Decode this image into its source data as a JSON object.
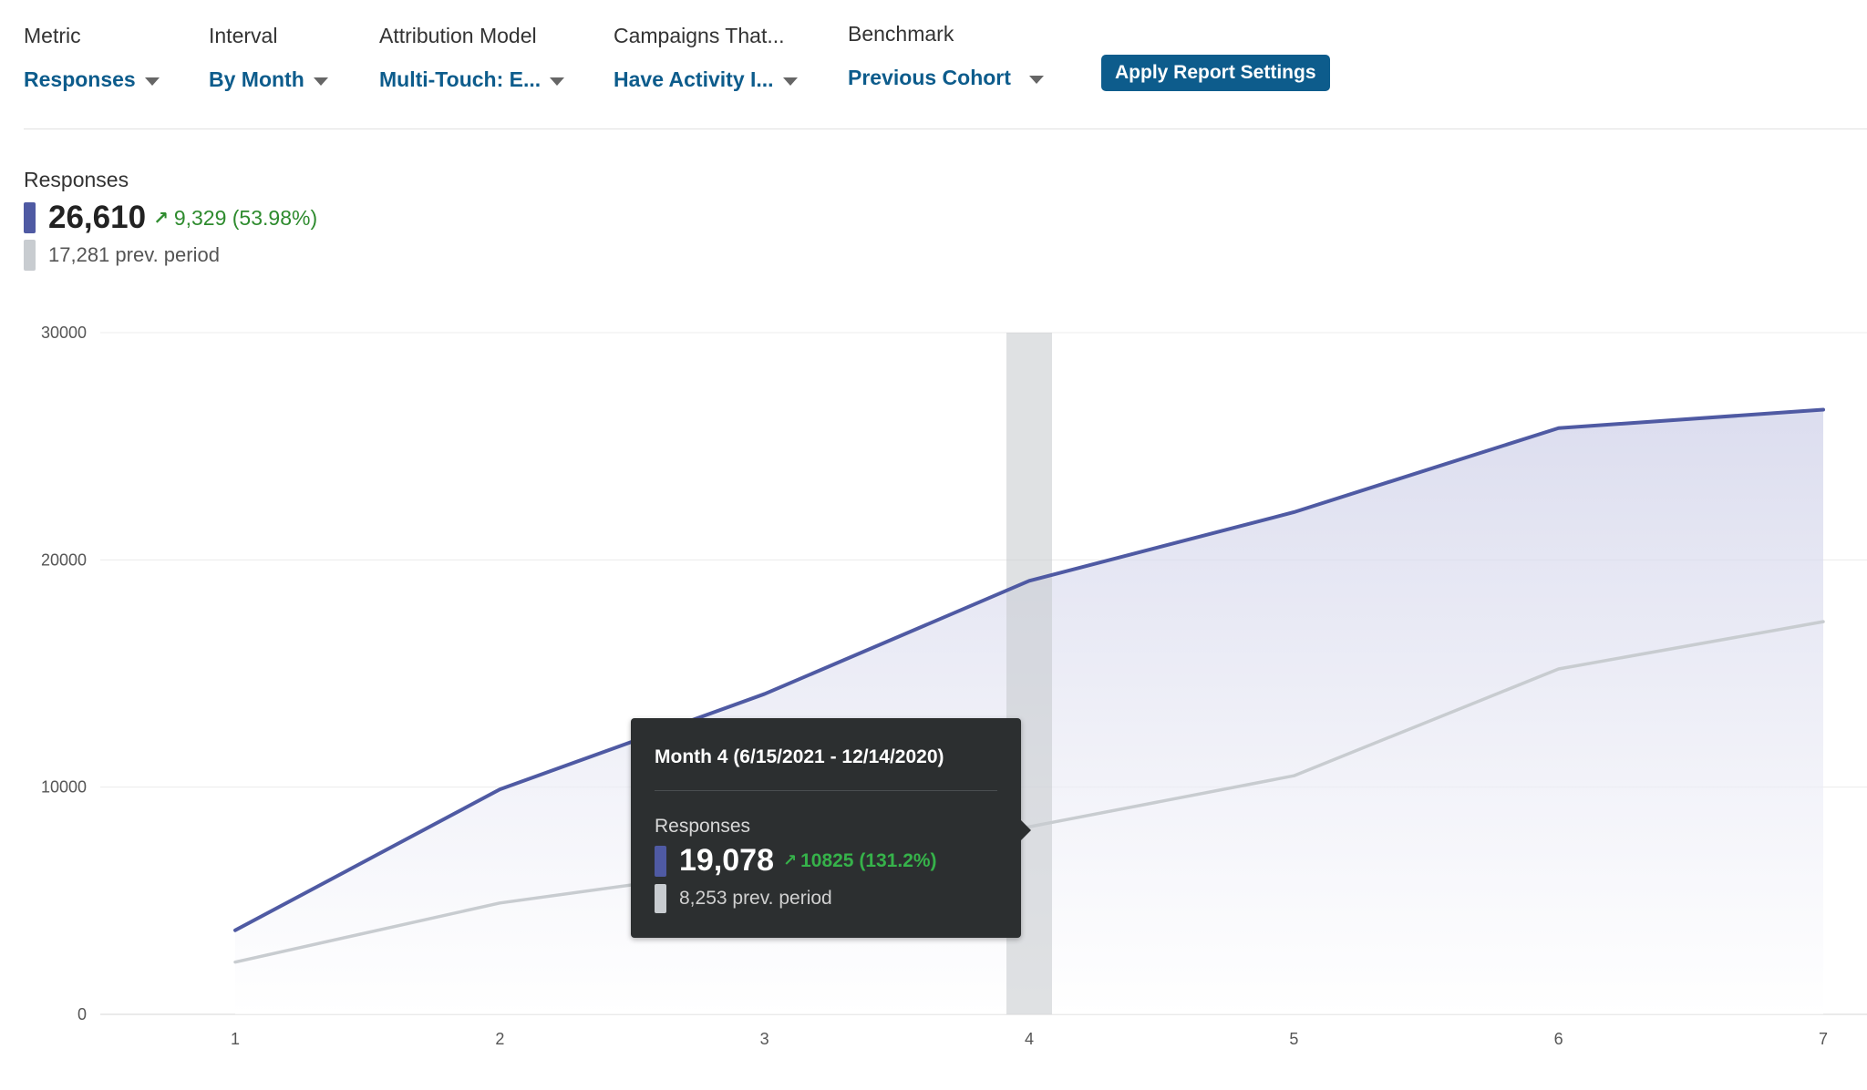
{
  "filters": [
    {
      "label": "Metric",
      "value": "Responses"
    },
    {
      "label": "Interval",
      "value": "By Month"
    },
    {
      "label": "Attribution Model",
      "value": "Multi-Touch: E..."
    },
    {
      "label": "Campaigns That...",
      "value": "Have Activity I..."
    },
    {
      "label": "Benchmark",
      "value": "Previous Cohort"
    }
  ],
  "apply_button": "Apply Report Settings",
  "summary": {
    "title": "Responses",
    "value": "26,610",
    "change": "9,329 (53.98%)",
    "prev": "17,281 prev. period"
  },
  "tooltip": {
    "title": "Month 4 (6/15/2021 - 12/14/2020)",
    "metric": "Responses",
    "value": "19,078",
    "change": "10825 (131.2%)",
    "prev": "8,253 prev. period"
  },
  "colors": {
    "current": "#4f5aa3",
    "previous": "#c8ccd0",
    "accent": "#0d5c8c",
    "positive": "#2e8b2e"
  },
  "icons": {
    "caret": "chevron-down-icon",
    "trend": "arrow-up-right-icon"
  },
  "chart_data": {
    "type": "area",
    "x": [
      1,
      2,
      3,
      4,
      5,
      6,
      7
    ],
    "series": [
      {
        "values": [
          3700,
          9900,
          14100,
          19078,
          22100,
          25800,
          26610
        ]
      },
      {
        "values": [
          2300,
          4900,
          6500,
          8253,
          10500,
          15200,
          17281
        ]
      }
    ],
    "yticks": [
      0,
      10000,
      20000,
      30000
    ],
    "ylim": [
      0,
      30000
    ],
    "xlim": [
      1,
      7
    ],
    "grid": true,
    "highlight_x": 4
  }
}
